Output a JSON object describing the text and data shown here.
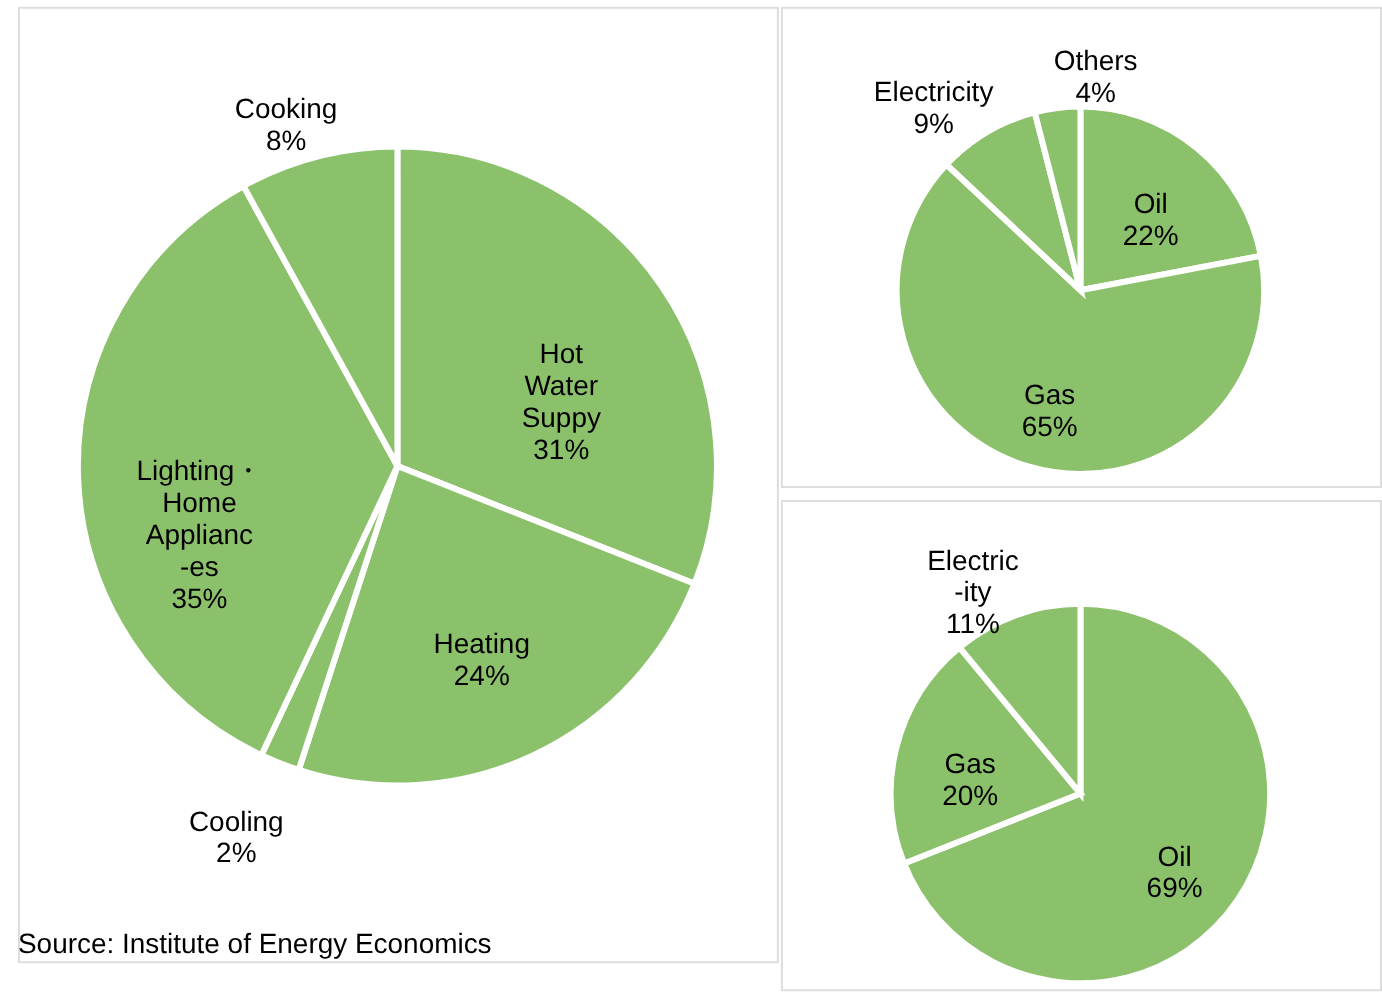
{
  "chart_data": [
    {
      "type": "pie",
      "categories": [
        "Hot\nWater\nSuppy",
        "Heating",
        "Cooling",
        "Lighting・\nHome\nApplianc\n-es",
        "Cooking"
      ],
      "values": [
        31,
        24,
        2,
        35,
        8
      ],
      "colors": [
        "#8cc16c",
        "#8cc16c",
        "#8cc16c",
        "#8cc16c",
        "#8cc16c"
      ],
      "value_labels": [
        "31%",
        "24%",
        "2%",
        "35%",
        "8%"
      ],
      "annotations": [
        "Source:  Institute of Energy Economics"
      ]
    },
    {
      "type": "pie",
      "categories": [
        "Oil",
        "Gas",
        "Electricity",
        "Others"
      ],
      "values": [
        22,
        65,
        9,
        4
      ],
      "colors": [
        "#8cc16c",
        "#8cc16c",
        "#8cc16c",
        "#8cc16c"
      ],
      "value_labels": [
        "22%",
        "65%",
        "9%",
        "4%"
      ]
    },
    {
      "type": "pie",
      "categories": [
        "Oil",
        "Gas",
        "Electric\n-ity"
      ],
      "values": [
        69,
        20,
        11
      ],
      "colors": [
        "#8cc16c",
        "#8cc16c",
        "#8cc16c"
      ],
      "value_labels": [
        "69%",
        "20%",
        "11%"
      ]
    }
  ]
}
